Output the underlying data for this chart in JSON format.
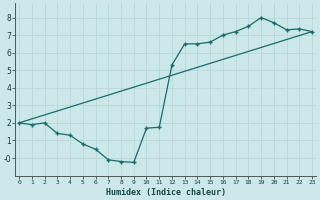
{
  "xlabel": "Humidex (Indice chaleur)",
  "bg_color": "#cde8ea",
  "grid_color": "#b8d8da",
  "line_color": "#1a6b6b",
  "marker_color": "#1a6b6b",
  "line1_x": [
    0,
    1,
    2,
    3,
    4,
    5,
    6,
    7,
    8,
    9,
    10,
    11,
    12,
    13,
    14,
    15,
    16,
    17,
    18,
    19,
    20,
    21,
    22,
    23
  ],
  "line1_y": [
    2.0,
    1.9,
    2.0,
    1.4,
    1.3,
    0.8,
    0.5,
    -0.1,
    -0.2,
    -0.25,
    1.7,
    1.75,
    5.3,
    6.5,
    6.5,
    6.6,
    7.0,
    7.2,
    7.5,
    8.0,
    7.7,
    7.3,
    7.35,
    7.2
  ],
  "line2_x": [
    0,
    23
  ],
  "line2_y": [
    2.0,
    7.2
  ],
  "xlim": [
    -0.3,
    23.3
  ],
  "ylim": [
    -1.0,
    8.8
  ],
  "ytick_vals": [
    0,
    1,
    2,
    3,
    4,
    5,
    6,
    7,
    8
  ],
  "ytick_labels": [
    "-0",
    "1",
    "2",
    "3",
    "4",
    "5",
    "6",
    "7",
    "8"
  ],
  "xtick_vals": [
    0,
    1,
    2,
    3,
    4,
    5,
    6,
    7,
    8,
    9,
    10,
    11,
    12,
    13,
    14,
    15,
    16,
    17,
    18,
    19,
    20,
    21,
    22,
    23
  ],
  "xtick_labels": [
    "0",
    "1",
    "2",
    "3",
    "4",
    "5",
    "6",
    "7",
    "8",
    "9",
    "10",
    "11",
    "12",
    "13",
    "14",
    "15",
    "16",
    "17",
    "18",
    "19",
    "20",
    "21",
    "22",
    "23"
  ]
}
